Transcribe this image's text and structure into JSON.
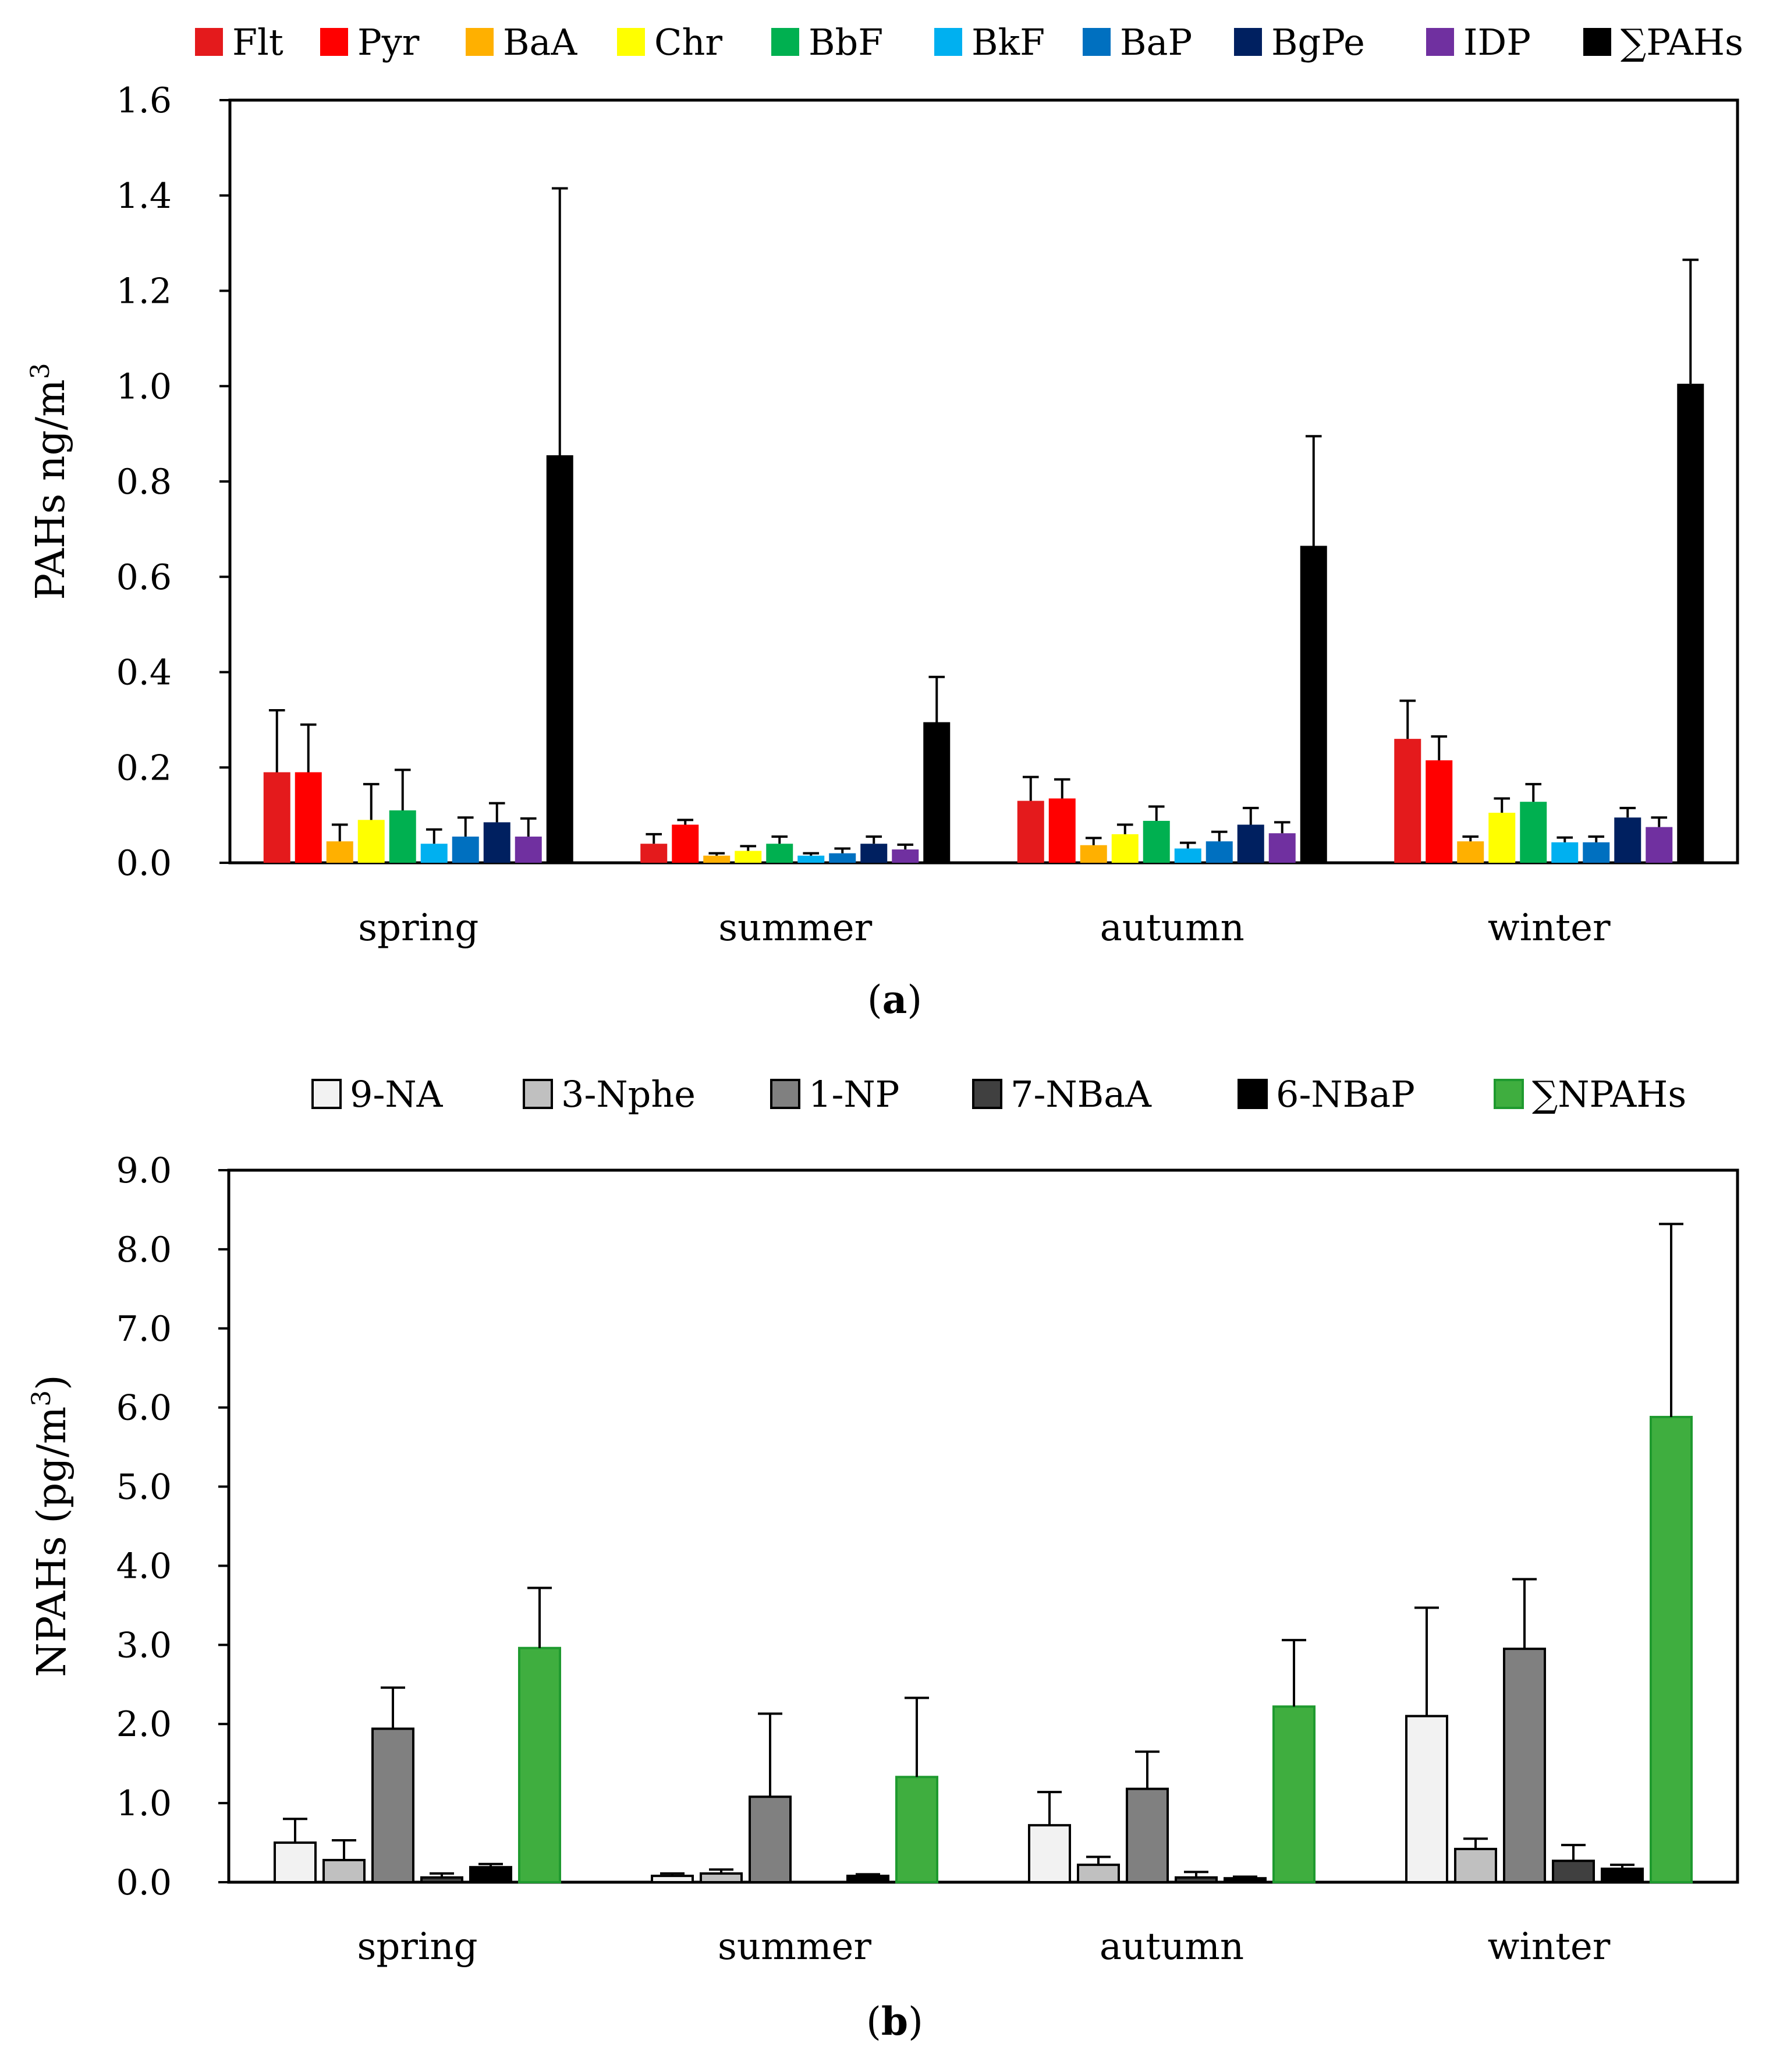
{
  "chart_data": [
    {
      "type": "bar",
      "panel_label": "a",
      "ylabel": "PAHs ng/m",
      "ylabel_sup": "3",
      "xlabel": "",
      "ylim": [
        0,
        1.6
      ],
      "yticks": [
        "0.0",
        "0.2",
        "0.4",
        "0.6",
        "0.8",
        "1.0",
        "1.2",
        "1.4",
        "1.6"
      ],
      "categories": [
        "spring",
        "summer",
        "autumn",
        "winter"
      ],
      "legend_position": "top",
      "series": [
        {
          "name": "Flt",
          "color": "#e41a1c",
          "values": [
            0.19,
            0.04,
            0.13,
            0.26
          ],
          "errors": [
            0.13,
            0.02,
            0.05,
            0.08
          ]
        },
        {
          "name": "Pyr",
          "color": "#ff0000",
          "values": [
            0.19,
            0.08,
            0.135,
            0.215
          ],
          "errors": [
            0.1,
            0.01,
            0.04,
            0.05
          ]
        },
        {
          "name": "BaA",
          "color": "#ffb000",
          "values": [
            0.045,
            0.015,
            0.037,
            0.045
          ],
          "errors": [
            0.035,
            0.005,
            0.015,
            0.01
          ]
        },
        {
          "name": "Chr",
          "color": "#ffff00",
          "values": [
            0.09,
            0.025,
            0.06,
            0.105
          ],
          "errors": [
            0.075,
            0.01,
            0.02,
            0.03
          ]
        },
        {
          "name": "BbF",
          "color": "#00b050",
          "values": [
            0.11,
            0.04,
            0.088,
            0.128
          ],
          "errors": [
            0.085,
            0.015,
            0.03,
            0.037
          ]
        },
        {
          "name": "BkF",
          "color": "#00b0f0",
          "values": [
            0.04,
            0.015,
            0.03,
            0.043
          ],
          "errors": [
            0.03,
            0.005,
            0.012,
            0.01
          ]
        },
        {
          "name": "BaP",
          "color": "#0070c0",
          "values": [
            0.055,
            0.02,
            0.045,
            0.043
          ],
          "errors": [
            0.04,
            0.01,
            0.02,
            0.012
          ]
        },
        {
          "name": "BgPe",
          "color": "#002060",
          "values": [
            0.085,
            0.04,
            0.08,
            0.095
          ],
          "errors": [
            0.04,
            0.015,
            0.035,
            0.02
          ]
        },
        {
          "name": "IDP",
          "color": "#7030a0",
          "values": [
            0.055,
            0.028,
            0.062,
            0.075
          ],
          "errors": [
            0.038,
            0.01,
            0.023,
            0.02
          ]
        },
        {
          "name": "∑PAHs",
          "color": "#000000",
          "values": [
            0.855,
            0.295,
            0.665,
            1.005
          ],
          "errors": [
            0.56,
            0.095,
            0.23,
            0.26
          ]
        }
      ]
    },
    {
      "type": "bar",
      "panel_label": "b",
      "ylabel": "NPAHs (pg/m",
      "ylabel_sup": "3",
      "ylabel_end": ")",
      "xlabel": "",
      "ylim": [
        0,
        9.0
      ],
      "yticks": [
        "0.0",
        "1.0",
        "2.0",
        "3.0",
        "4.0",
        "5.0",
        "6.0",
        "7.0",
        "8.0",
        "9.0"
      ],
      "categories": [
        "spring",
        "summer",
        "autumn",
        "winter"
      ],
      "legend_position": "top",
      "series": [
        {
          "name": "9-NA",
          "color": "#f2f2f2",
          "stroke": "#000000",
          "values": [
            0.5,
            0.08,
            0.72,
            2.1
          ],
          "errors": [
            0.3,
            0.03,
            0.42,
            1.37
          ]
        },
        {
          "name": "3-Nphe",
          "color": "#c0c0c0",
          "stroke": "#000000",
          "values": [
            0.28,
            0.11,
            0.22,
            0.42
          ],
          "errors": [
            0.25,
            0.05,
            0.1,
            0.13
          ]
        },
        {
          "name": "1-NP",
          "color": "#808080",
          "stroke": "#000000",
          "values": [
            1.94,
            1.08,
            1.18,
            2.95
          ],
          "errors": [
            0.52,
            1.05,
            0.47,
            0.88
          ]
        },
        {
          "name": "7-NBaA",
          "color": "#404040",
          "stroke": "#000000",
          "values": [
            0.06,
            0.0,
            0.06,
            0.27
          ],
          "errors": [
            0.05,
            0.0,
            0.07,
            0.2
          ]
        },
        {
          "name": "6-NBaP",
          "color": "#000000",
          "stroke": "#000000",
          "values": [
            0.19,
            0.08,
            0.05,
            0.17
          ],
          "errors": [
            0.04,
            0.02,
            0.02,
            0.05
          ]
        },
        {
          "name": "∑NPAHs",
          "color": "#3fae3f",
          "stroke": "#1f9a2f",
          "values": [
            2.96,
            1.33,
            2.22,
            5.88
          ],
          "errors": [
            0.76,
            1.0,
            0.84,
            2.44
          ]
        }
      ]
    }
  ]
}
